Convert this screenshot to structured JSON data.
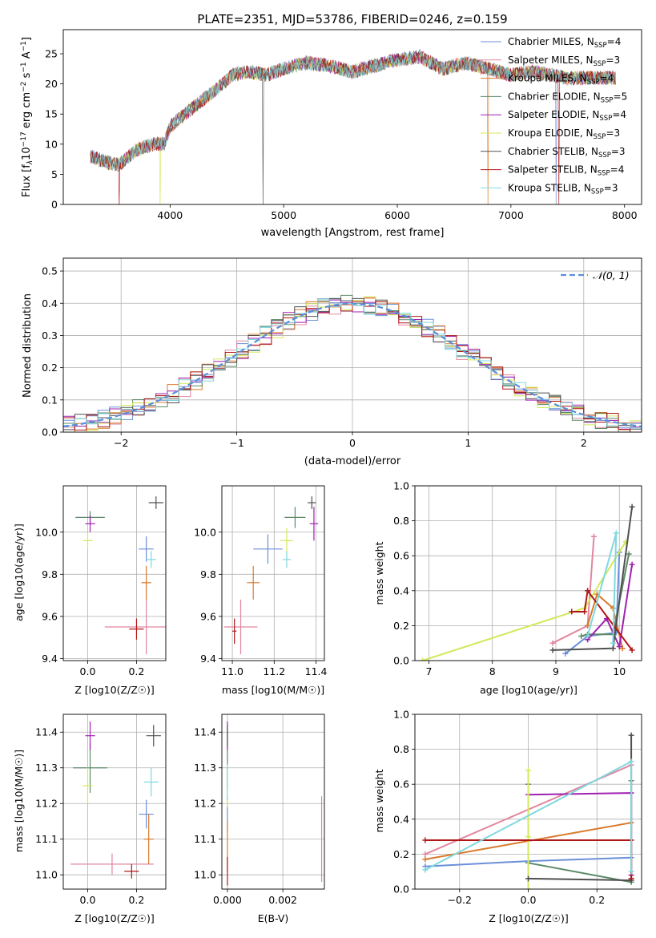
{
  "figure_title": "PLATE=2351, MJD=53786, FIBERID=0246, z=0.159",
  "series_styles": [
    {
      "name": "Chabrier MILES, N$_{SSP}$=4",
      "label_main": "Chabrier MILES, N",
      "label_sub": "SSP",
      "label_tail": "=4",
      "color": "#6b8fd8"
    },
    {
      "name": "Salpeter MILES, N$_{SSP}$=3",
      "label_main": "Salpeter MILES, N",
      "label_sub": "SSP",
      "label_tail": "=3",
      "color": "#e2869e"
    },
    {
      "name": "Kroupa MILES, N$_{SSP}$=4",
      "label_main": "Kroupa MILES, N",
      "label_sub": "SSP",
      "label_tail": "=4",
      "color": "#d97a2b"
    },
    {
      "name": "Chabrier ELODIE, N$_{SSP}$=5",
      "label_main": "Chabrier ELODIE, N",
      "label_sub": "SSP",
      "label_tail": "=5",
      "color": "#5c8a68"
    },
    {
      "name": "Salpeter ELODIE, N$_{SSP}$=4",
      "label_main": "Salpeter ELODIE, N",
      "label_sub": "SSP",
      "label_tail": "=4",
      "color": "#a020b0"
    },
    {
      "name": "Kroupa ELODIE, N$_{SSP}$=3",
      "label_main": "Kroupa ELODIE, N",
      "label_sub": "SSP",
      "label_tail": "=3",
      "color": "#d4e85a"
    },
    {
      "name": "Chabrier STELIB, N$_{SSP}$=3",
      "label_main": "Chabrier STELIB, N",
      "label_sub": "SSP",
      "label_tail": "=3",
      "color": "#505050"
    },
    {
      "name": "Salpeter STELIB, N$_{SSP}$=4",
      "label_main": "Salpeter STELIB, N",
      "label_sub": "SSP",
      "label_tail": "=4",
      "color": "#b01818"
    },
    {
      "name": "Kroupa STELIB, N$_{SSP}$=3",
      "label_main": "Kroupa STELIB, N",
      "label_sub": "SSP",
      "label_tail": "=3",
      "color": "#7fd8df"
    }
  ],
  "chart_data": [
    {
      "id": "spectrum",
      "type": "line",
      "xlabel": "wavelength [Angstrom, rest frame]",
      "ylabel": "Flux [f_λ 10^-17 erg cm^-2 s^-1 A^-1]",
      "ylabel_parts": {
        "a": "Flux [f",
        "b": "λ",
        "c": "10",
        "d": "−17",
        "e": " erg cm",
        "f": "−2",
        "g": " s",
        "h": "−1",
        "i": " A",
        "j": "−1",
        "k": "]"
      },
      "xlim": [
        3060,
        8150
      ],
      "ylim": [
        0,
        29
      ],
      "xticks": [
        4000,
        5000,
        6000,
        7000,
        8000
      ],
      "yticks": [
        0,
        5,
        10,
        15,
        20,
        25
      ],
      "grid": false,
      "legend": "upper right",
      "continuum": [
        [
          3300,
          8
        ],
        [
          3450,
          7
        ],
        [
          3550,
          6.5
        ],
        [
          3700,
          9
        ],
        [
          3850,
          10
        ],
        [
          3950,
          10
        ],
        [
          4000,
          13
        ],
        [
          4200,
          16
        ],
        [
          4400,
          19
        ],
        [
          4550,
          21.5
        ],
        [
          4700,
          22
        ],
        [
          4850,
          21.5
        ],
        [
          5000,
          22.5
        ],
        [
          5200,
          23.5
        ],
        [
          5400,
          23
        ],
        [
          5600,
          22
        ],
        [
          5800,
          23
        ],
        [
          6000,
          24
        ],
        [
          6200,
          24.5
        ],
        [
          6400,
          22.5
        ],
        [
          6600,
          23.5
        ],
        [
          6800,
          22.5
        ],
        [
          7000,
          21.5
        ],
        [
          7200,
          22
        ],
        [
          7500,
          21
        ],
        [
          7800,
          21
        ],
        [
          7900,
          21
        ]
      ]
    },
    {
      "id": "residual-hist",
      "type": "line",
      "xlabel": "(data-model)/error",
      "ylabel": "Normed distribution",
      "xlim": [
        -2.5,
        2.5
      ],
      "ylim": [
        0,
        0.54
      ],
      "xticks": [
        -2,
        -1,
        0,
        1,
        2
      ],
      "yticks": [
        0.0,
        0.1,
        0.2,
        0.3,
        0.4,
        0.5
      ],
      "grid": true,
      "legend": "upper right",
      "reference_label": "𝒩(0, 1)",
      "bin_width": 0.1
    },
    {
      "id": "z-age",
      "type": "scatter",
      "xlabel": "Z [log10(Z/Z☉)]",
      "ylabel": "age [log10(age/yr)]",
      "xlim": [
        -0.1,
        0.32
      ],
      "ylim": [
        9.39,
        10.22
      ],
      "xticks": [
        0.0,
        0.2
      ],
      "yticks": [
        9.4,
        9.6,
        9.8,
        10.0
      ],
      "grid": true,
      "points": [
        {
          "x": 0.24,
          "y": 9.92,
          "xerr": 0.03,
          "yerr": 0.06
        },
        {
          "x": 0.24,
          "y": 9.55,
          "xerr": 0.17,
          "yerr": 0.13
        },
        {
          "x": 0.24,
          "y": 9.76,
          "xerr": 0.02,
          "yerr": 0.08
        },
        {
          "x": 0.01,
          "y": 10.07,
          "xerr": 0.06,
          "yerr": 0.03
        },
        {
          "x": 0.01,
          "y": 10.04,
          "xerr": 0.02,
          "yerr": 0.04
        },
        {
          "x": 0.0,
          "y": 9.96,
          "xerr": 0.02,
          "yerr": 0.04
        },
        {
          "x": 0.28,
          "y": 10.14,
          "xerr": 0.03,
          "yerr": 0.03
        },
        {
          "x": 0.2,
          "y": 9.54,
          "xerr": 0.03,
          "yerr": 0.05
        },
        {
          "x": 0.26,
          "y": 9.87,
          "xerr": 0.02,
          "yerr": 0.04
        }
      ]
    },
    {
      "id": "mass-age",
      "type": "scatter",
      "xlabel": "mass [log10(M/M☉)]",
      "ylabel": "",
      "xlim": [
        10.95,
        11.44
      ],
      "ylim": [
        9.39,
        10.22
      ],
      "xticks": [
        11.0,
        11.2,
        11.4
      ],
      "yticks": [
        9.4,
        9.6,
        9.8,
        10.0
      ],
      "grid": true,
      "points": [
        {
          "x": 11.17,
          "y": 9.92,
          "xerr": 0.07,
          "yerr": 0.07
        },
        {
          "x": 11.04,
          "y": 9.55,
          "xerr": 0.08,
          "yerr": 0.13
        },
        {
          "x": 11.1,
          "y": 9.76,
          "xerr": 0.03,
          "yerr": 0.08
        },
        {
          "x": 11.3,
          "y": 10.07,
          "xerr": 0.05,
          "yerr": 0.05
        },
        {
          "x": 11.39,
          "y": 10.04,
          "xerr": 0.02,
          "yerr": 0.08
        },
        {
          "x": 11.26,
          "y": 9.96,
          "xerr": 0.03,
          "yerr": 0.06
        },
        {
          "x": 11.38,
          "y": 10.14,
          "xerr": 0.02,
          "yerr": 0.03
        },
        {
          "x": 11.01,
          "y": 9.53,
          "xerr": 0.01,
          "yerr": 0.06
        },
        {
          "x": 11.26,
          "y": 9.87,
          "xerr": 0.02,
          "yerr": 0.04
        }
      ]
    },
    {
      "id": "age-weight",
      "type": "line",
      "xlabel": "age [log10(age/yr)]",
      "ylabel": "mass weight",
      "xlim": [
        6.78,
        10.35
      ],
      "ylim": [
        0,
        1.0
      ],
      "xticks": [
        7,
        8,
        9,
        10
      ],
      "yticks": [
        0.0,
        0.2,
        0.4,
        0.6,
        0.8,
        1.0
      ],
      "grid": true,
      "series": [
        {
          "x": [
            9.15,
            9.5,
            9.95,
            10.0
          ],
          "y": [
            0.04,
            0.14,
            0.16,
            0.62
          ]
        },
        {
          "x": [
            8.95,
            9.5,
            9.6
          ],
          "y": [
            0.1,
            0.2,
            0.71
          ]
        },
        {
          "x": [
            9.5,
            9.65,
            9.9,
            10.05
          ],
          "y": [
            0.2,
            0.38,
            0.3,
            0.07
          ]
        },
        {
          "x": [
            9.4,
            9.5,
            9.9,
            10.15
          ],
          "y": [
            0.14,
            0.15,
            0.15,
            0.61
          ]
        },
        {
          "x": [
            9.5,
            9.8,
            10.0,
            10.2
          ],
          "y": [
            0.12,
            0.24,
            0.08,
            0.55
          ]
        },
        {
          "x": [
            6.9,
            9.45,
            10.1
          ],
          "y": [
            0.0,
            0.3,
            0.68
          ]
        },
        {
          "x": [
            8.95,
            9.9,
            10.2
          ],
          "y": [
            0.06,
            0.07,
            0.88
          ]
        },
        {
          "x": [
            9.25,
            9.45,
            9.5,
            10.2
          ],
          "y": [
            0.28,
            0.28,
            0.4,
            0.06
          ]
        },
        {
          "x": [
            9.5,
            9.95,
            9.9
          ],
          "y": [
            0.14,
            0.73,
            0.1
          ]
        }
      ]
    },
    {
      "id": "z-mass",
      "type": "scatter",
      "xlabel": "Z [log10(Z/Z☉)]",
      "ylabel": "mass [log10(M/M☉)]",
      "xlim": [
        -0.1,
        0.32
      ],
      "ylim": [
        10.96,
        11.45
      ],
      "xticks": [
        0.0,
        0.2
      ],
      "yticks": [
        11.0,
        11.1,
        11.2,
        11.3,
        11.4
      ],
      "grid": true,
      "points": [
        {
          "x": 0.24,
          "y": 11.17,
          "xerr": 0.03,
          "yerr": 0.04
        },
        {
          "x": 0.1,
          "y": 11.03,
          "xerr": 0.17,
          "yerr": 0.03
        },
        {
          "x": 0.25,
          "y": 11.1,
          "xerr": 0.02,
          "yerr": 0.07
        },
        {
          "x": 0.01,
          "y": 11.3,
          "xerr": 0.07,
          "yerr": 0.07
        },
        {
          "x": 0.01,
          "y": 11.39,
          "xerr": 0.02,
          "yerr": 0.04
        },
        {
          "x": 0.0,
          "y": 11.25,
          "xerr": 0.02,
          "yerr": 0.05
        },
        {
          "x": 0.27,
          "y": 11.39,
          "xerr": 0.03,
          "yerr": 0.03
        },
        {
          "x": 0.18,
          "y": 11.01,
          "xerr": 0.03,
          "yerr": 0.02
        },
        {
          "x": 0.26,
          "y": 11.26,
          "xerr": 0.03,
          "yerr": 0.04
        }
      ]
    },
    {
      "id": "ebv-mass",
      "type": "scatter",
      "xlabel": "E(B-V)",
      "ylabel": "",
      "xlim": [
        -0.0002,
        0.0035
      ],
      "ylim": [
        10.96,
        11.45
      ],
      "xticks": [
        0.0,
        0.002
      ],
      "yticks": [
        11.0,
        11.1,
        11.2,
        11.3,
        11.4
      ],
      "grid": true,
      "points": [
        {
          "x": 0.0,
          "y": 11.17,
          "xerr": 0.0,
          "yerr": 0.05
        },
        {
          "x": 0.0034,
          "y": 11.1,
          "xerr": 0.0,
          "yerr": 0.12
        },
        {
          "x": 0.0,
          "y": 11.08,
          "xerr": 0.0,
          "yerr": 0.07
        },
        {
          "x": 0.0,
          "y": 11.3,
          "xerr": 0.0,
          "yerr": 0.06
        },
        {
          "x": 0.0,
          "y": 11.39,
          "xerr": 0.0,
          "yerr": 0.04
        },
        {
          "x": 0.0,
          "y": 11.25,
          "xerr": 0.0,
          "yerr": 0.06
        },
        {
          "x": 0.0,
          "y": 11.39,
          "xerr": 0.0,
          "yerr": 0.03
        },
        {
          "x": 0.0,
          "y": 11.01,
          "xerr": 0.0,
          "yerr": 0.04
        },
        {
          "x": 0.0,
          "y": 11.26,
          "xerr": 0.0,
          "yerr": 0.05
        }
      ]
    },
    {
      "id": "z-weight",
      "type": "line",
      "xlabel": "Z [log10(Z/Z☉)]",
      "ylabel": "mass weight",
      "xlim": [
        -0.33,
        0.33
      ],
      "ylim": [
        0,
        1.0
      ],
      "xticks": [
        -0.2,
        0.0,
        0.2
      ],
      "yticks": [
        0.0,
        0.2,
        0.4,
        0.6,
        0.8,
        1.0
      ],
      "grid": true,
      "series": [
        {
          "x": [
            -0.3,
            0.0,
            0.3
          ],
          "y": [
            0.13,
            0.16,
            0.18
          ]
        },
        {
          "x": [
            -0.3,
            0.3
          ],
          "y": [
            0.2,
            0.71
          ]
        },
        {
          "x": [
            -0.3,
            0.3
          ],
          "y": [
            0.17,
            0.38
          ]
        },
        {
          "x": [
            0.0,
            0.0,
            0.3,
            0.3
          ],
          "y": [
            0.6,
            0.15,
            0.04,
            0.62
          ]
        },
        {
          "x": [
            0.0,
            0.3,
            0.3
          ],
          "y": [
            0.54,
            0.55,
            0.08
          ]
        },
        {
          "x": [
            0.0,
            0.0,
            0.0
          ],
          "y": [
            0.68,
            0.0,
            0.3
          ]
        },
        {
          "x": [
            0.0,
            0.3,
            0.3
          ],
          "y": [
            0.06,
            0.05,
            0.88
          ]
        },
        {
          "x": [
            -0.3,
            0.3,
            0.3
          ],
          "y": [
            0.28,
            0.28,
            0.06
          ]
        },
        {
          "x": [
            -0.3,
            0.3,
            0.3
          ],
          "y": [
            0.11,
            0.73,
            0.1
          ]
        }
      ]
    }
  ]
}
